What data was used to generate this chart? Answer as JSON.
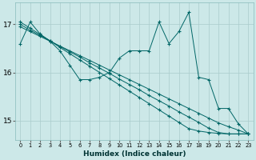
{
  "xlabel": "Humidex (Indice chaleur)",
  "background_color": "#cce8e8",
  "grid_color": "#aacccc",
  "line_color": "#006666",
  "xlim": [
    -0.5,
    23.5
  ],
  "ylim": [
    14.6,
    17.45
  ],
  "yticks": [
    15,
    16,
    17
  ],
  "xticks": [
    0,
    1,
    2,
    3,
    4,
    5,
    6,
    7,
    8,
    9,
    10,
    11,
    12,
    13,
    14,
    15,
    16,
    17,
    18,
    19,
    20,
    21,
    22,
    23
  ],
  "jagged": [
    16.6,
    17.05,
    16.8,
    16.65,
    16.45,
    16.15,
    15.85,
    15.85,
    15.9,
    16.0,
    16.3,
    16.45,
    16.45,
    16.45,
    17.05,
    16.6,
    16.85,
    17.25,
    15.9,
    15.85,
    15.25,
    15.25,
    14.93,
    14.72
  ],
  "trend1": [
    16.95,
    16.85,
    16.75,
    16.65,
    16.55,
    16.45,
    16.35,
    16.25,
    16.15,
    16.05,
    15.95,
    15.85,
    15.75,
    15.65,
    15.55,
    15.45,
    15.35,
    15.25,
    15.15,
    15.05,
    14.95,
    14.87,
    14.8,
    14.72
  ],
  "trend2": [
    17.0,
    16.88,
    16.77,
    16.66,
    16.54,
    16.43,
    16.32,
    16.2,
    16.09,
    15.98,
    15.86,
    15.75,
    15.64,
    15.52,
    15.41,
    15.3,
    15.18,
    15.07,
    14.96,
    14.84,
    14.75,
    14.72,
    14.72,
    14.72
  ],
  "trend3": [
    17.05,
    16.92,
    16.79,
    16.66,
    16.52,
    16.39,
    16.26,
    16.13,
    16.0,
    15.87,
    15.74,
    15.61,
    15.48,
    15.35,
    15.22,
    15.09,
    14.96,
    14.83,
    14.78,
    14.75,
    14.73,
    14.72,
    14.72,
    14.72
  ]
}
